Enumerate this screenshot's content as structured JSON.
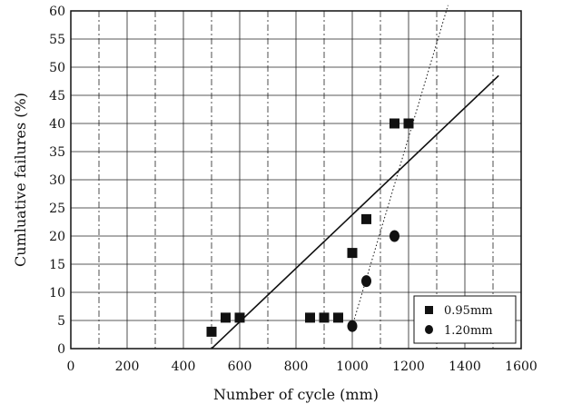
{
  "chart_data": {
    "type": "scatter",
    "title": "",
    "xlabel": "Number of cycle (mm)",
    "ylabel": "Cumluative failures (%)",
    "xlim": [
      0,
      1600
    ],
    "ylim": [
      0,
      60
    ],
    "x_ticks": [
      0,
      200,
      400,
      600,
      800,
      1000,
      1200,
      1400,
      1600
    ],
    "y_ticks": [
      0,
      5,
      10,
      15,
      20,
      25,
      30,
      35,
      40,
      45,
      50,
      55,
      60
    ],
    "grid": true,
    "legend_position": "bottom-right",
    "series": [
      {
        "name": "0.95mm",
        "marker": "square",
        "points": [
          [
            500,
            3
          ],
          [
            550,
            5.5
          ],
          [
            600,
            5.5
          ],
          [
            850,
            5.5
          ],
          [
            900,
            5.5
          ],
          [
            950,
            5.5
          ],
          [
            1000,
            17
          ],
          [
            1050,
            23
          ],
          [
            1150,
            40
          ],
          [
            1200,
            40
          ]
        ],
        "fit_line": [
          [
            500,
            0
          ],
          [
            1520,
            48.5
          ]
        ],
        "fit_style": "solid"
      },
      {
        "name": "1.20mm",
        "marker": "circle",
        "points": [
          [
            1000,
            4
          ],
          [
            1050,
            12
          ],
          [
            1150,
            20
          ]
        ],
        "fit_line": [
          [
            1000,
            4
          ],
          [
            1340,
            61
          ]
        ],
        "fit_style": "dotted"
      }
    ],
    "colors": {
      "marker": "#111111",
      "line": "#111111",
      "grid": "#222222"
    }
  }
}
